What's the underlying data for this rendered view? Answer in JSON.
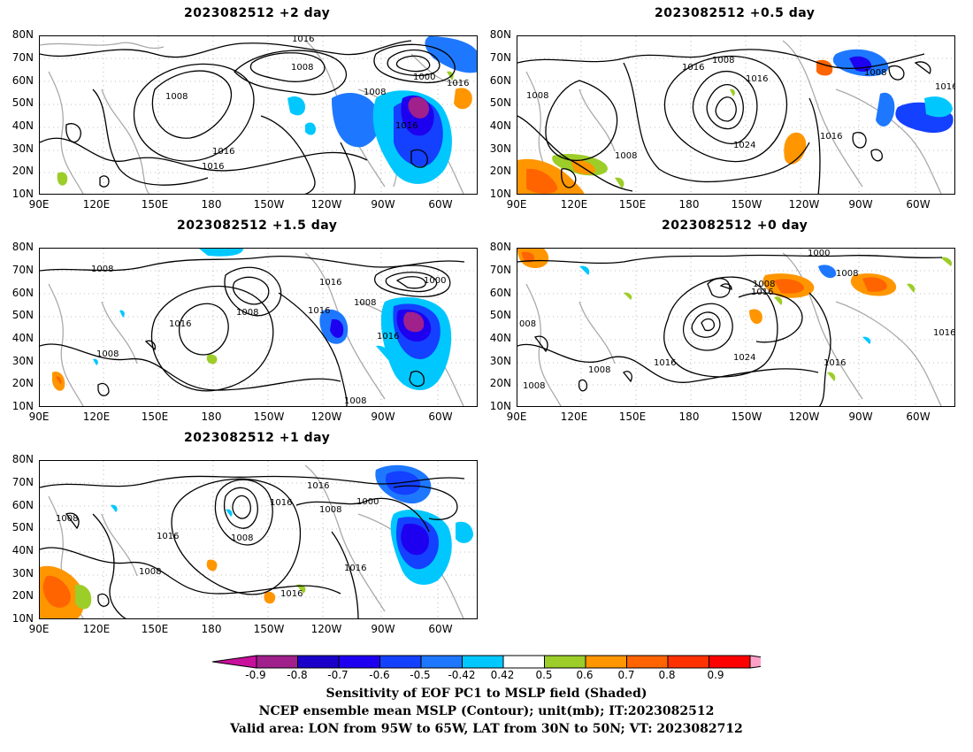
{
  "panels": [
    {
      "title": "2023082512 +2 day"
    },
    {
      "title": "2023082512 +0.5 day"
    },
    {
      "title": "2023082512 +1.5 day"
    },
    {
      "title": "2023082512 +0 day"
    },
    {
      "title": "2023082512 +1 day"
    }
  ],
  "axes": {
    "lat_labels": [
      "80N",
      "70N",
      "60N",
      "50N",
      "40N",
      "30N",
      "20N",
      "10N"
    ],
    "lon_labels": [
      "90E",
      "120E",
      "150E",
      "180",
      "150W",
      "120W",
      "90W",
      "60W"
    ]
  },
  "contour_labels": {
    "p0": [
      "1016",
      "1008",
      "1008",
      "1008",
      "1000",
      "1016",
      "1016",
      "1016",
      "1016"
    ],
    "p1": [
      "1016",
      "1008",
      "1016",
      "1008",
      "1008",
      "1016",
      "1024",
      "1016",
      "1008"
    ],
    "p2": [
      "1008",
      "1016",
      "1008",
      "1016",
      "1008",
      "1000",
      "1016",
      "1016",
      "1008",
      "1008"
    ],
    "p3": [
      "1000",
      "1008",
      "1008",
      "1016",
      "008",
      "1016",
      "1024",
      "1016",
      "1016",
      "1008",
      "1008"
    ],
    "p4": [
      "1016",
      "1016",
      "1008",
      "1000",
      "1016",
      "1008",
      "1008",
      "1016",
      "1008",
      "1016"
    ]
  },
  "colorbar": {
    "labels": [
      "-0.9",
      "-0.8",
      "-0.7",
      "-0.6",
      "-0.5",
      "-0.42",
      "0.42",
      "0.5",
      "0.6",
      "0.7",
      "0.8",
      "0.9"
    ],
    "colors": [
      "#a0208c",
      "#1a00c8",
      "#1e00f0",
      "#1440ff",
      "#1e78ff",
      "#00c8ff",
      "#ffffff",
      "#9ccd28",
      "#ff9600",
      "#ff6400",
      "#ff3200",
      "#ff0000"
    ],
    "low_end_color": "#c8109c",
    "high_end_color": "#ffa0c8"
  },
  "captions": {
    "line1": "Sensitivity of EOF PC1 to MSLP field (Shaded)",
    "line2": "NCEP ensemble mean MSLP (Contour); unit(mb); IT:2023082512",
    "line3": "Valid area: LON from 95W to 65W, LAT from 30N to 50N; VT: 2023082712"
  }
}
